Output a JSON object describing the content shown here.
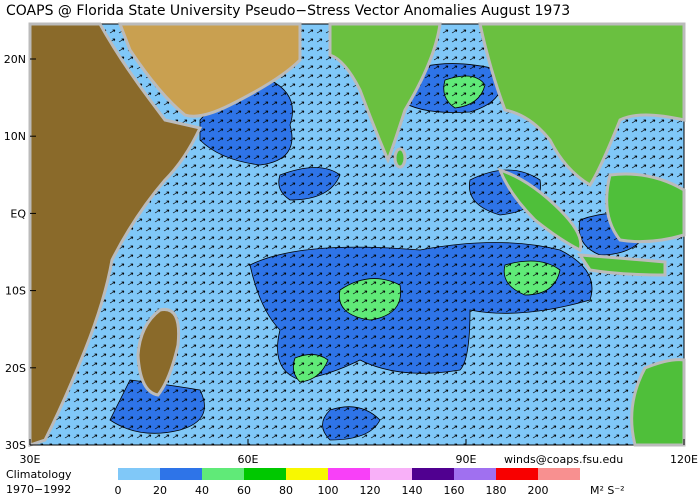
{
  "header": {
    "title": "COAPS @ Florida State University Pseudo−Stress Vector Anomalies  August 1973"
  },
  "map": {
    "lat_labels": [
      "20N",
      "10N",
      "EQ",
      "10S",
      "20S",
      "30S"
    ],
    "lon_labels": [
      "30E",
      "60E",
      "90E",
      "120E"
    ],
    "contact": "winds@coaps.fsu.edu"
  },
  "legend": {
    "caption": [
      "Climatology",
      "1970−1992"
    ],
    "colors": [
      "#80c8f8",
      "#2e74e8",
      "#60ea78",
      "#00c800",
      "#f8f800",
      "#f840f8",
      "#f8b0f8",
      "#500090",
      "#a070f0",
      "#f80000",
      "#f89090"
    ],
    "ticks": [
      0,
      20,
      40,
      60,
      80,
      100,
      120,
      140,
      160,
      180,
      200
    ],
    "unit": "M² S⁻²"
  }
}
